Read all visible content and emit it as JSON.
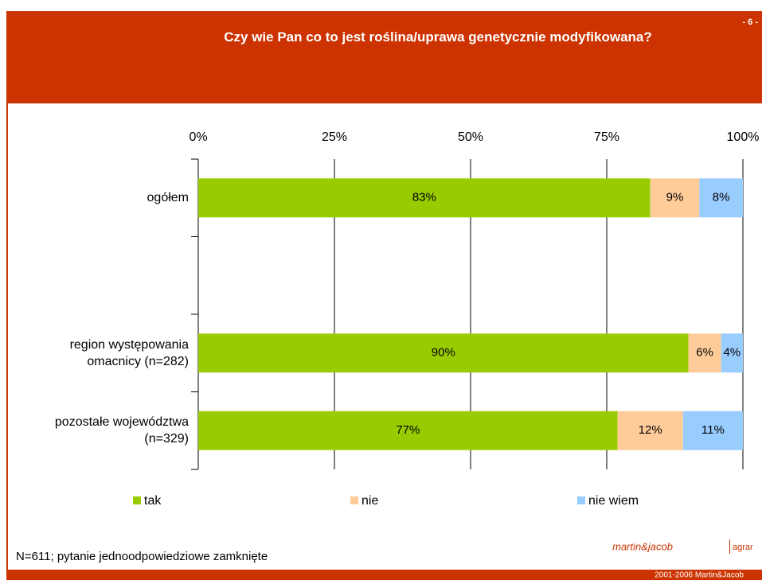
{
  "page_number": "- 6 -",
  "chart_data": {
    "type": "bar",
    "orientation": "horizontal",
    "stacked": true,
    "title": "Czy wie Pan co to jest roślina/uprawa genetycznie modyfikowana?",
    "categories": [
      "ogółem",
      null,
      "region występowania omacnicy (n=282)",
      "pozostałe województwa (n=329)"
    ],
    "series": [
      {
        "name": "tak",
        "color": "#99cc00",
        "values": [
          83,
          null,
          90,
          77
        ],
        "value_labels": [
          "83%",
          null,
          "90%",
          "77%"
        ]
      },
      {
        "name": "nie",
        "color": "#ffcc99",
        "values": [
          9,
          null,
          6,
          12
        ],
        "value_labels": [
          "9%",
          null,
          "6%",
          "12%"
        ]
      },
      {
        "name": "nie wiem",
        "color": "#99ccff",
        "values": [
          8,
          null,
          4,
          11
        ],
        "value_labels": [
          "8%",
          null,
          "4%",
          "11%"
        ]
      }
    ],
    "xlim": [
      0,
      100
    ],
    "xticks": [
      {
        "value": 0,
        "label": "0%"
      },
      {
        "value": 25,
        "label": "25%"
      },
      {
        "value": 50,
        "label": "50%"
      },
      {
        "value": 75,
        "label": "75%"
      },
      {
        "value": 100,
        "label": "100%"
      }
    ],
    "grid": true,
    "legend": "bottom"
  },
  "footnote": "N=611; pytanie jednoodpowiedziowe zamknięte",
  "logo": {
    "name": "martin&jacob",
    "sub": "agrar"
  },
  "copyright": "2001-2006 Martin&Jacob"
}
